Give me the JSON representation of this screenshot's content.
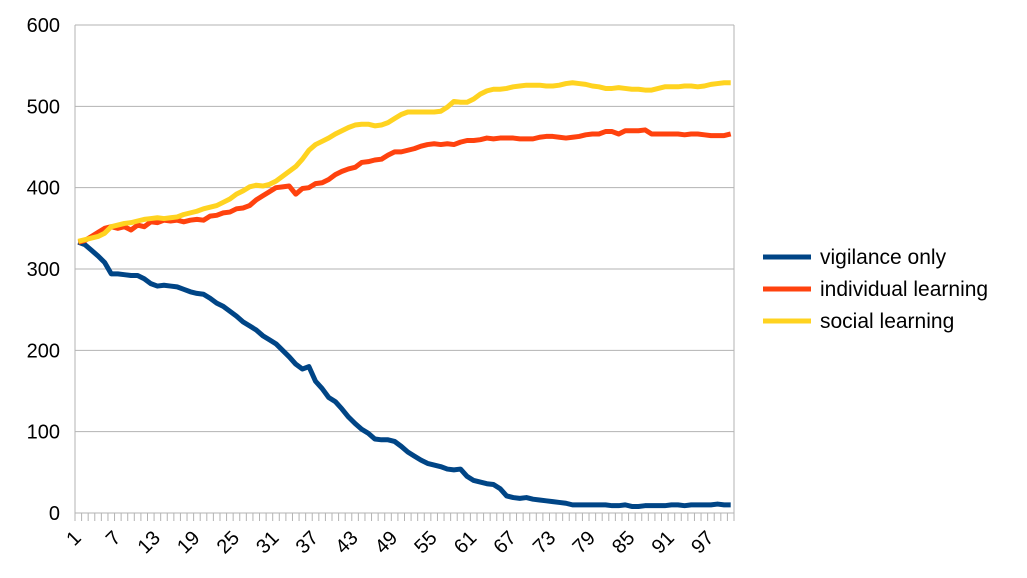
{
  "chart_data": {
    "type": "line",
    "title": "",
    "xlabel": "",
    "ylabel": "",
    "x_range": [
      1,
      100
    ],
    "ylim": [
      0,
      600
    ],
    "y_ticks": [
      0,
      100,
      200,
      300,
      400,
      500,
      600
    ],
    "x_tick_labels": [
      1,
      7,
      13,
      19,
      25,
      31,
      37,
      43,
      49,
      55,
      61,
      67,
      73,
      79,
      85,
      91,
      97
    ],
    "grid": "horizontal",
    "legend_position": "right",
    "series": [
      {
        "name": "vigilance only",
        "color": "#004586",
        "values": [
          333,
          330,
          323,
          316,
          308,
          294,
          294,
          293,
          292,
          292,
          288,
          282,
          279,
          280,
          279,
          278,
          275,
          272,
          270,
          269,
          264,
          258,
          254,
          248,
          242,
          235,
          230,
          225,
          218,
          213,
          208,
          200,
          192,
          183,
          177,
          180,
          162,
          153,
          142,
          137,
          128,
          118,
          110,
          103,
          98,
          91,
          90,
          90,
          88,
          82,
          75,
          70,
          65,
          61,
          59,
          57,
          54,
          53,
          54,
          45,
          40,
          38,
          36,
          35,
          30,
          21,
          19,
          18,
          19,
          17,
          16,
          15,
          14,
          13,
          12,
          10,
          10,
          10,
          10,
          10,
          10,
          9,
          9,
          10,
          8,
          8,
          9,
          9,
          9,
          9,
          10,
          10,
          9,
          10,
          10,
          10,
          10,
          11,
          10,
          10
        ]
      },
      {
        "name": "individual learning",
        "color": "#ff420e",
        "values": [
          333,
          335,
          340,
          345,
          350,
          352,
          350,
          352,
          348,
          354,
          352,
          358,
          357,
          360,
          359,
          360,
          358,
          360,
          361,
          360,
          365,
          366,
          369,
          370,
          374,
          375,
          378,
          385,
          390,
          395,
          400,
          401,
          402,
          392,
          399,
          400,
          405,
          406,
          410,
          416,
          420,
          423,
          425,
          431,
          432,
          434,
          435,
          440,
          444,
          444,
          446,
          448,
          451,
          453,
          454,
          453,
          454,
          453,
          456,
          458,
          458,
          459,
          461,
          460,
          461,
          461,
          461,
          460,
          460,
          460,
          462,
          463,
          463,
          462,
          461,
          462,
          463,
          465,
          466,
          466,
          469,
          469,
          466,
          470,
          470,
          470,
          471,
          466,
          466,
          466,
          466,
          466,
          465,
          466,
          466,
          465,
          464,
          464,
          464,
          466
        ]
      },
      {
        "name": "social learning",
        "color": "#ffd320",
        "values": [
          334,
          336,
          338,
          340,
          344,
          352,
          354,
          356,
          357,
          359,
          361,
          362,
          363,
          362,
          363,
          364,
          367,
          369,
          371,
          374,
          376,
          378,
          382,
          386,
          392,
          396,
          401,
          403,
          402,
          404,
          408,
          414,
          420,
          426,
          435,
          446,
          453,
          457,
          461,
          466,
          470,
          474,
          477,
          478,
          478,
          476,
          477,
          480,
          485,
          490,
          493,
          493,
          493,
          493,
          493,
          494,
          499,
          506,
          505,
          505,
          509,
          515,
          519,
          521,
          521,
          522,
          524,
          525,
          526,
          526,
          526,
          525,
          525,
          526,
          528,
          529,
          528,
          527,
          525,
          524,
          522,
          522,
          523,
          522,
          521,
          521,
          520,
          520,
          522,
          524,
          524,
          524,
          525,
          525,
          524,
          525,
          527,
          528,
          529,
          529
        ]
      }
    ]
  }
}
